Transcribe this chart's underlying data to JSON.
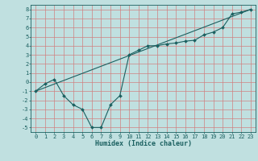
{
  "title": "",
  "xlabel": "Humidex (Indice chaleur)",
  "ylabel": "",
  "bg_color": "#c0e0e0",
  "grid_color": "#d08080",
  "line_color": "#1a6060",
  "xlim": [
    -0.5,
    23.5
  ],
  "ylim": [
    -5.5,
    8.5
  ],
  "xticks": [
    0,
    1,
    2,
    3,
    4,
    5,
    6,
    7,
    8,
    9,
    10,
    11,
    12,
    13,
    14,
    15,
    16,
    17,
    18,
    19,
    20,
    21,
    22,
    23
  ],
  "yticks": [
    -5,
    -4,
    -3,
    -2,
    -1,
    0,
    1,
    2,
    3,
    4,
    5,
    6,
    7,
    8
  ],
  "line1_x": [
    0,
    1,
    2,
    3,
    4,
    5,
    6,
    7,
    8,
    9,
    10,
    11,
    12,
    13,
    14,
    15,
    16,
    17,
    18,
    19,
    20,
    21,
    22,
    23
  ],
  "line1_y": [
    -1.0,
    -0.2,
    0.3,
    -1.5,
    -2.5,
    -3.0,
    -5.0,
    -5.0,
    -2.5,
    -1.5,
    3.0,
    3.5,
    4.0,
    4.0,
    4.2,
    4.3,
    4.5,
    4.6,
    5.2,
    5.5,
    6.0,
    7.5,
    7.7,
    8.0
  ],
  "line2_x": [
    0,
    23
  ],
  "line2_y": [
    -1.0,
    8.0
  ],
  "marker": "D",
  "markersize": 2.0,
  "linewidth": 0.8,
  "tick_fontsize": 5.0,
  "xlabel_fontsize": 6.0
}
